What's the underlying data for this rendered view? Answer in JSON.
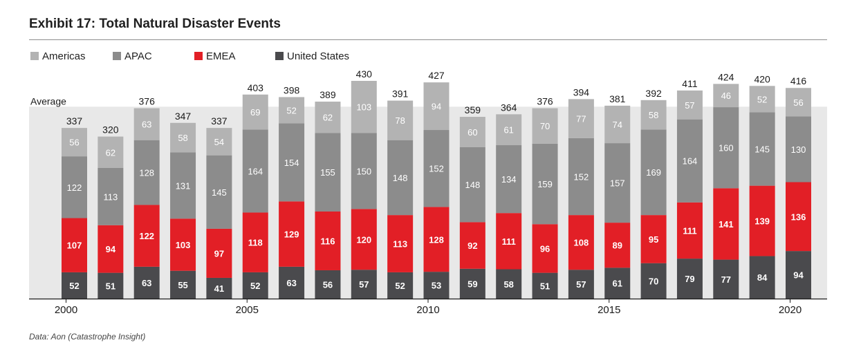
{
  "title": "Exhibit 17: Total Natural Disaster Events",
  "source": "Data: Aon (Catastrophe Insight)",
  "colors": {
    "americas": "#b3b3b3",
    "apac": "#8c8c8c",
    "emea": "#e21f26",
    "us": "#4a4a4d",
    "average_band": "#e8e8e8",
    "axis": "#1a1a1a"
  },
  "legend": [
    {
      "key": "americas",
      "label": "Americas"
    },
    {
      "key": "apac",
      "label": "APAC"
    },
    {
      "key": "emea",
      "label": "EMEA"
    },
    {
      "key": "us",
      "label": "United States"
    }
  ],
  "chart_data": {
    "type": "bar",
    "stacked": true,
    "categories": [
      2000,
      2001,
      2002,
      2003,
      2004,
      2005,
      2006,
      2007,
      2008,
      2009,
      2010,
      2011,
      2012,
      2013,
      2014,
      2015,
      2016,
      2017,
      2018,
      2019,
      2020
    ],
    "x_tick_labels": [
      {
        "year": 2000,
        "label": "2000"
      },
      {
        "year": 2005,
        "label": "2005"
      },
      {
        "year": 2010,
        "label": "2010"
      },
      {
        "year": 2015,
        "label": "2015"
      },
      {
        "year": 2020,
        "label": "2020"
      }
    ],
    "series": [
      {
        "key": "us",
        "name": "United States",
        "values": [
          52,
          51,
          63,
          55,
          41,
          52,
          63,
          56,
          57,
          52,
          53,
          59,
          58,
          51,
          57,
          61,
          70,
          79,
          77,
          84,
          94
        ]
      },
      {
        "key": "emea",
        "name": "EMEA",
        "values": [
          107,
          94,
          122,
          103,
          97,
          118,
          129,
          116,
          120,
          113,
          128,
          92,
          111,
          96,
          108,
          89,
          95,
          111,
          141,
          139,
          136
        ]
      },
      {
        "key": "apac",
        "name": "APAC",
        "values": [
          122,
          113,
          128,
          131,
          145,
          164,
          154,
          155,
          150,
          148,
          152,
          148,
          134,
          159,
          152,
          157,
          169,
          164,
          160,
          145,
          130
        ]
      },
      {
        "key": "americas",
        "name": "Americas",
        "values": [
          56,
          62,
          63,
          58,
          54,
          69,
          52,
          62,
          103,
          78,
          94,
          60,
          61,
          70,
          77,
          74,
          58,
          57,
          46,
          52,
          56
        ]
      }
    ],
    "totals": [
      337,
      320,
      376,
      347,
      337,
      403,
      398,
      389,
      430,
      391,
      427,
      359,
      364,
      376,
      394,
      381,
      392,
      411,
      424,
      420,
      416
    ],
    "average": {
      "label": "Average",
      "value": 379
    },
    "ylim": [
      0,
      450
    ],
    "grid": false,
    "legend_position": "top-left"
  }
}
